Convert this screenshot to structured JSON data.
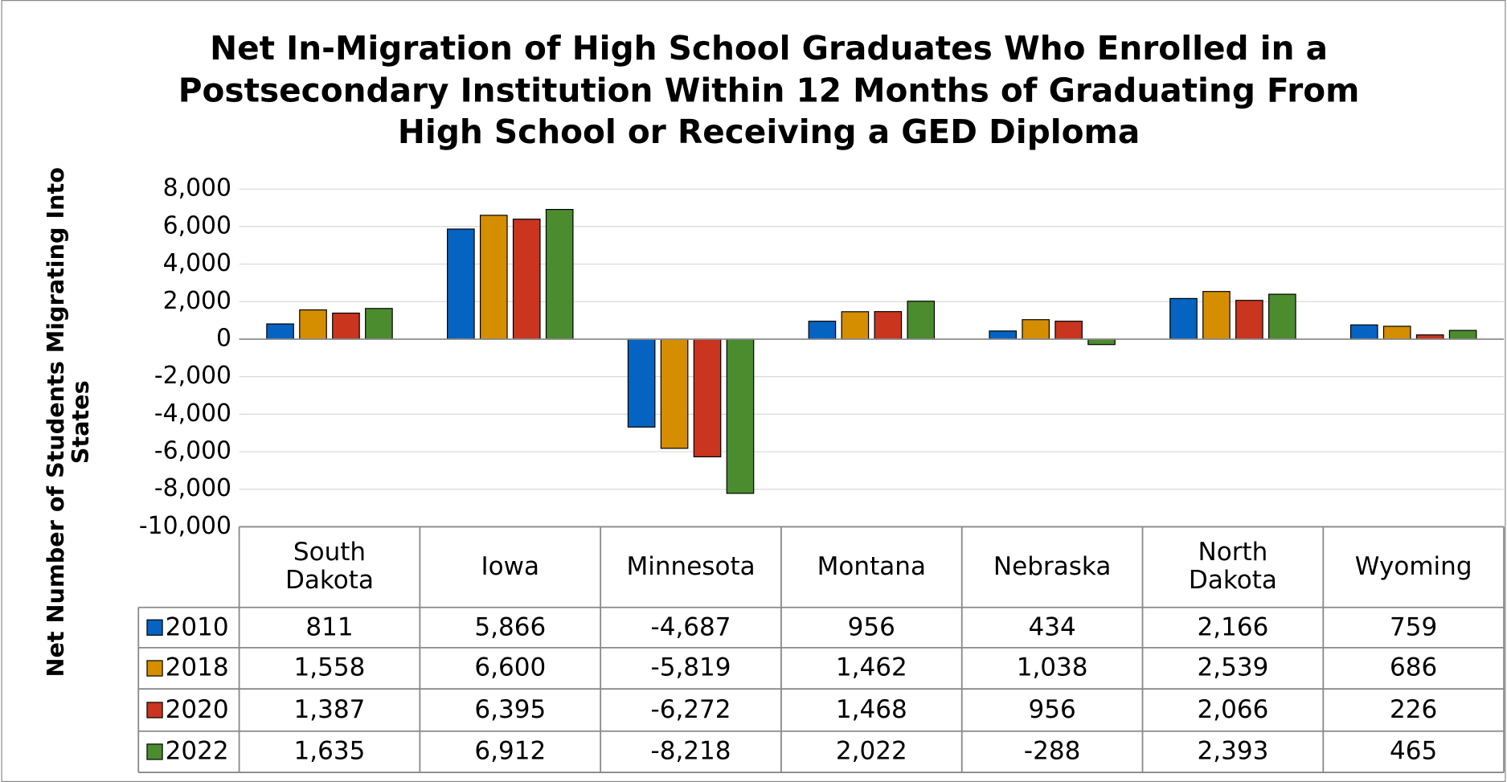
{
  "chart_data": {
    "type": "bar",
    "title": "Net In-Migration of High School Graduates Who Enrolled in a Postsecondary Institution Within 12 Months of Graduating From High School or Receiving a GED Diploma",
    "y_axis_label": "Net Number of Students Migrating Into States",
    "categories": [
      "South Dakota",
      "Iowa",
      "Minnesota",
      "Montana",
      "Nebraska",
      "North Dakota",
      "Wyoming"
    ],
    "series": [
      {
        "name": "2010",
        "color": "#0563c1",
        "values": [
          811,
          5866,
          -4687,
          956,
          434,
          2166,
          759
        ],
        "value_labels": [
          "811",
          "5,866",
          "-4,687",
          "956",
          "434",
          "2,166",
          "759"
        ]
      },
      {
        "name": "2018",
        "color": "#d48e00",
        "values": [
          1558,
          6600,
          -5819,
          1462,
          1038,
          2539,
          686
        ],
        "value_labels": [
          "1,558",
          "6,600",
          "-5,819",
          "1,462",
          "1,038",
          "2,539",
          "686"
        ]
      },
      {
        "name": "2020",
        "color": "#c9351f",
        "values": [
          1387,
          6395,
          -6272,
          1468,
          956,
          2066,
          226
        ],
        "value_labels": [
          "1,387",
          "6,395",
          "-6,272",
          "1,468",
          "956",
          "2,066",
          "226"
        ]
      },
      {
        "name": "2022",
        "color": "#4a8c2e",
        "values": [
          1635,
          6912,
          -8218,
          2022,
          -288,
          2393,
          465
        ],
        "value_labels": [
          "1,635",
          "6,912",
          "-8,218",
          "2,022",
          "-288",
          "2,393",
          "465"
        ]
      }
    ],
    "ylim": [
      -10000,
      8000
    ],
    "yticks": [
      {
        "value": -10000,
        "label": "-10,000"
      },
      {
        "value": -8000,
        "label": "-8,000"
      },
      {
        "value": -6000,
        "label": "-6,000"
      },
      {
        "value": -4000,
        "label": "-4,000"
      },
      {
        "value": -2000,
        "label": "-2,000"
      },
      0,
      {
        "value": 2000,
        "label": "2,000"
      },
      {
        "value": 4000,
        "label": "4,000"
      },
      {
        "value": 6000,
        "label": "6,000"
      },
      {
        "value": 8000,
        "label": "8,000"
      }
    ],
    "grid": true
  }
}
